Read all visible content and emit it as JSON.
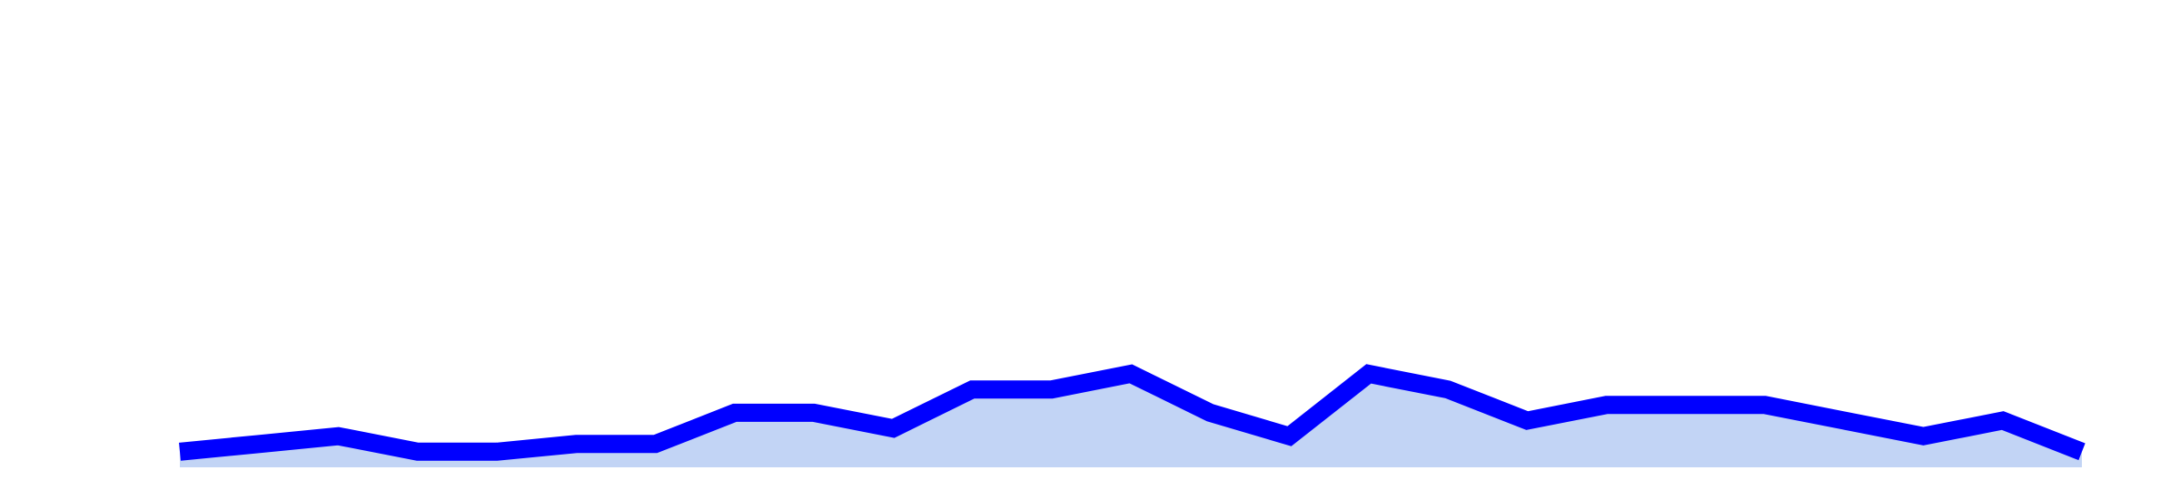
{
  "chart_data": {
    "type": "area",
    "x": [
      1,
      2,
      3,
      4,
      5,
      6,
      7,
      8,
      9,
      10,
      11,
      12,
      13,
      14,
      15,
      16,
      17,
      18,
      19,
      20,
      21,
      22,
      23,
      24,
      25
    ],
    "series": [
      {
        "values": [
          2,
          3,
          4,
          2,
          2,
          3,
          3,
          7,
          7,
          5,
          10,
          10,
          12,
          7,
          4,
          12,
          10,
          6,
          8,
          8,
          8,
          6,
          4,
          6,
          2
        ],
        "line_color": "#0000ff",
        "fill_color": "#c2d4f5"
      }
    ],
    "ylim": [
      0,
      60
    ],
    "grid": false,
    "axes_visible": false
  }
}
